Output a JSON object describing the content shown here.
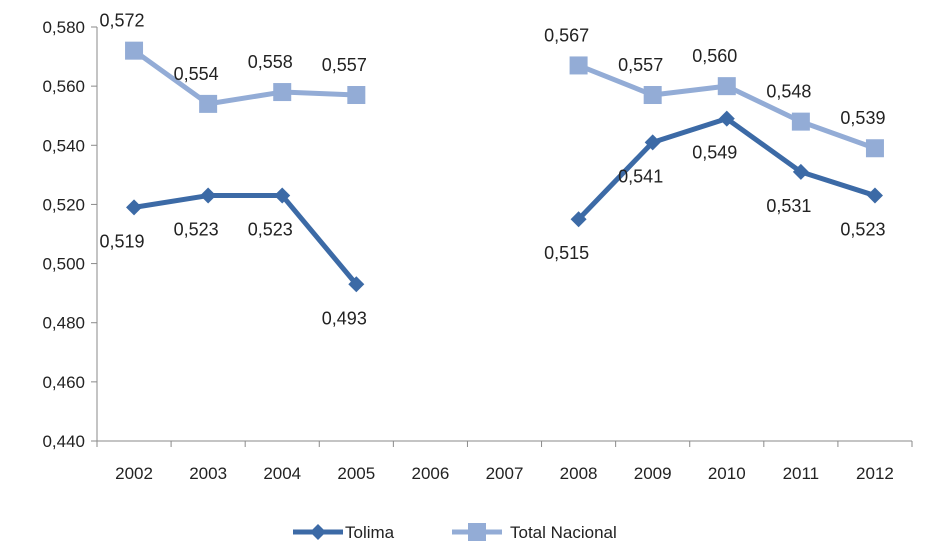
{
  "chart_data": {
    "type": "line",
    "categories": [
      "2002",
      "2003",
      "2004",
      "2005",
      "2006",
      "2007",
      "2008",
      "2009",
      "2010",
      "2011",
      "2012"
    ],
    "ylim": [
      0.44,
      0.58
    ],
    "yticks": [
      0.44,
      0.46,
      0.48,
      0.5,
      0.52,
      0.54,
      0.56,
      0.58
    ],
    "ytick_labels": [
      "0,440",
      "0,460",
      "0,480",
      "0,500",
      "0,520",
      "0,540",
      "0,560",
      "0,580"
    ],
    "grid": false,
    "legend": "bottom",
    "series": [
      {
        "name": "Tolima",
        "color": "#3C6AA6",
        "marker": "diamond",
        "values": [
          0.519,
          0.523,
          0.523,
          0.493,
          null,
          null,
          0.515,
          0.541,
          0.549,
          0.531,
          0.523
        ],
        "labels": [
          "0,519",
          "0,523",
          "0,523",
          "0,493",
          "",
          "",
          "0,515",
          "0,541",
          "0,549",
          "0,531",
          "0,523"
        ]
      },
      {
        "name": "Total Nacional",
        "color": "#93ACD6",
        "marker": "square",
        "values": [
          0.572,
          0.554,
          0.558,
          0.557,
          null,
          null,
          0.567,
          0.557,
          0.56,
          0.548,
          0.539
        ],
        "labels": [
          "0,572",
          "0,554",
          "0,558",
          "0,557",
          "",
          "",
          "0,567",
          "0,557",
          "0,560",
          "0,548",
          "0,539"
        ]
      }
    ]
  }
}
